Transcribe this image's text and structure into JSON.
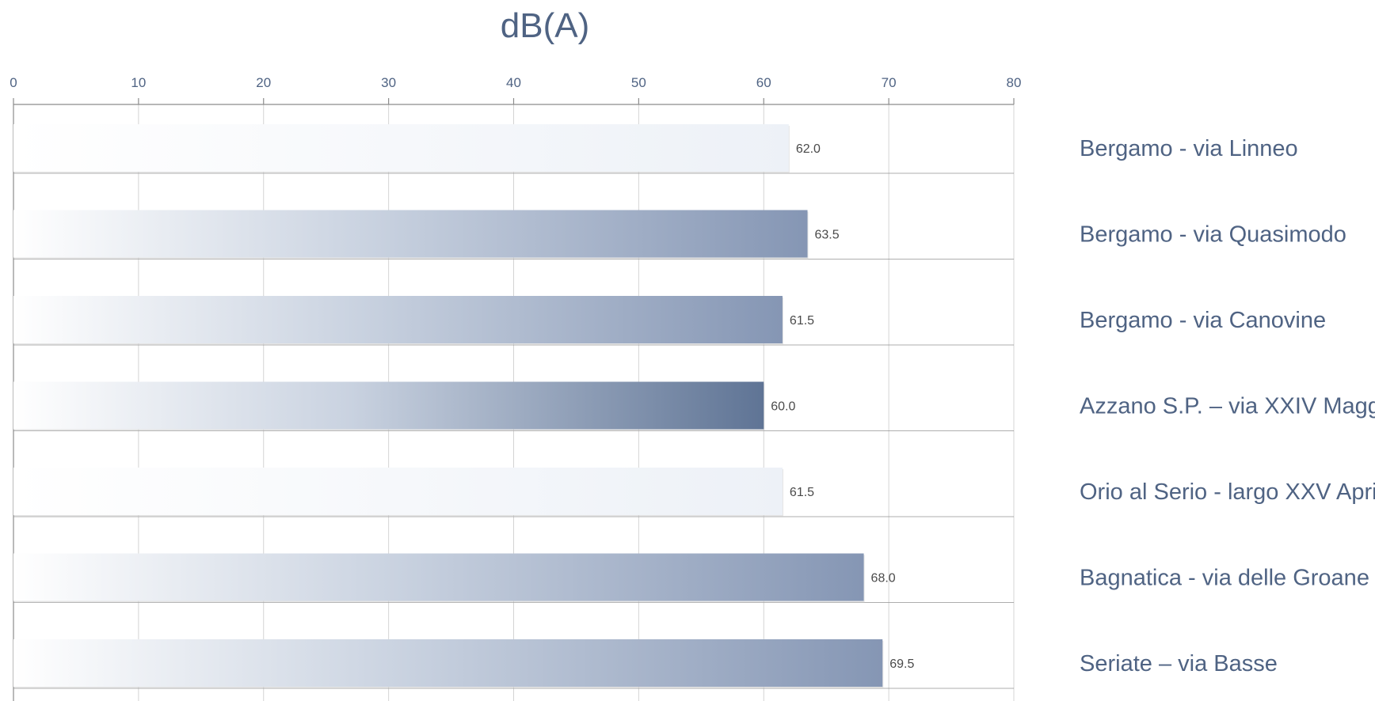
{
  "chart_data": {
    "type": "bar",
    "orientation": "horizontal",
    "title": "dB(A)",
    "xlabel": "",
    "ylabel": "",
    "xlim": [
      0,
      80
    ],
    "x_ticks": [
      0,
      10,
      20,
      30,
      40,
      50,
      60,
      70,
      80
    ],
    "axis_position": "top",
    "legend": "none",
    "grid": true,
    "categories": [
      "Bergamo - via Linneo",
      "Bergamo - via Quasimodo",
      "Bergamo - via Canovine",
      "Azzano S.P. – via XXIV Maggio",
      "Orio al Serio - largo XXV Aprile",
      "Bagnatica - via delle Groane",
      "Seriate – via Basse"
    ],
    "values": [
      62.0,
      63.5,
      61.5,
      60.0,
      61.5,
      68.0,
      69.5
    ],
    "value_labels": [
      "62.0",
      "63.5",
      "61.5",
      "60.0",
      "61.5",
      "68.0",
      "69.5"
    ],
    "gradient_style": [
      "light",
      "medium",
      "medium",
      "dark",
      "light",
      "medium",
      "medium"
    ],
    "colors": {
      "text": "#4f6383",
      "value_text": "#4a4a4a",
      "gridline": "#d4d4d4",
      "axis": "#8c8c8c",
      "gradient_start": "#ffffff",
      "gradient_light_end": "#edf1f7",
      "gradient_medium_end": "#c9d2e0",
      "gradient_deep_end": "#8596b4",
      "gradient_dark_end": "#5f7495"
    }
  }
}
